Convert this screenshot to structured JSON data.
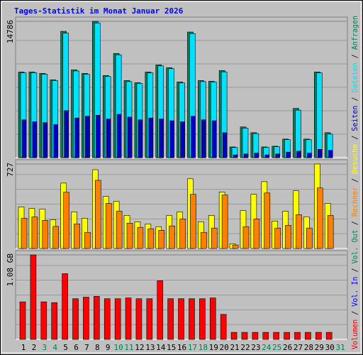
{
  "chart_data": {
    "type": "bar",
    "title": "Tages-Statistik im Monat Januar 2026",
    "categories": [
      1,
      2,
      3,
      4,
      5,
      6,
      7,
      8,
      9,
      10,
      11,
      12,
      13,
      14,
      15,
      16,
      17,
      18,
      19,
      20,
      21,
      22,
      23,
      24,
      25,
      26,
      27,
      28,
      29,
      30,
      31
    ],
    "category_colors": [
      "#000000",
      "#000000",
      "#00805c",
      "#00805c",
      "#000000",
      "#000000",
      "#000000",
      "#000000",
      "#000000",
      "#00805c",
      "#00805c",
      "#000000",
      "#000000",
      "#000000",
      "#000000",
      "#000000",
      "#00805c",
      "#00805c",
      "#000000",
      "#000000",
      "#000000",
      "#000000",
      "#000000",
      "#00805c",
      "#00805c",
      "#000000",
      "#000000",
      "#000000",
      "#000000",
      "#000000",
      "#00805c"
    ],
    "panels": [
      {
        "ylim": [
          0,
          14786
        ],
        "yticks": [
          14786
        ],
        "series": [
          {
            "name": "Anfragen",
            "color": "#00805c",
            "values": [
              9290,
              9290,
              9135,
              8438,
              13702,
              9522,
              9135,
              14786,
              8903,
              11302,
              8361,
              8129,
              9290,
              10064,
              9754,
              8206,
              13625,
              8361,
              8283,
              9445,
              1161,
              3329,
              2710,
              1161,
              1239,
              2013,
              5342,
              2013,
              9290,
              2710,
              0
            ]
          },
          {
            "name": "Dateien",
            "color": "#00e0ff",
            "values": [
              9200,
              9210,
              9050,
              8350,
              13500,
              9400,
              9050,
              14600,
              8800,
              11150,
              8250,
              8050,
              9200,
              9950,
              9650,
              8100,
              13450,
              8250,
              8200,
              9300,
              1100,
              3200,
              2600,
              1100,
              1180,
              1950,
              5150,
              1950,
              9200,
              2550,
              0
            ]
          },
          {
            "name": "Seiten",
            "color": "#0000c0",
            "values": [
              4100,
              3900,
              3800,
              3600,
              5100,
              4300,
              4500,
              4600,
              4200,
              4700,
              4400,
              4100,
              4300,
              4200,
              4000,
              3900,
              4500,
              4100,
              4000,
              2700,
              300,
              400,
              500,
              300,
              400,
              600,
              700,
              500,
              900,
              800,
              0
            ]
          }
        ]
      },
      {
        "ylim": [
          0,
          727
        ],
        "yticks": [
          727
        ],
        "series": [
          {
            "name": "Besuche",
            "color": "#ffff00",
            "values": [
              357,
              345,
              339,
              248,
              563,
              315,
              260,
              678,
              448,
              406,
              285,
              230,
              212,
              188,
              285,
              315,
              600,
              230,
              285,
              485,
              40,
              327,
              466,
              575,
              236,
              321,
              497,
              273,
              727,
              388,
              0
            ]
          },
          {
            "name": "Rechner",
            "color": "#ff8000",
            "values": [
              260,
              272,
              242,
              190,
              484,
              212,
              139,
              587,
              388,
              321,
              218,
              182,
              170,
              157,
              194,
              254,
              466,
              139,
              176,
              460,
              30,
              188,
              254,
              478,
              176,
              200,
              291,
              176,
              521,
              285,
              0
            ]
          }
        ]
      },
      {
        "ylim": [
          0,
          1.08
        ],
        "yticks": [
          {
            "value": 1.08,
            "label": "1.08 GB"
          }
        ],
        "series": [
          {
            "name": "Volumen",
            "color": "#ff0000",
            "values": [
              0.48,
              1.08,
              0.48,
              0.47,
              0.84,
              0.52,
              0.54,
              0.55,
              0.52,
              0.52,
              0.53,
              0.52,
              0.52,
              0.75,
              0.52,
              0.52,
              0.52,
              0.52,
              0.53,
              0.32,
              0.09,
              0.09,
              0.09,
              0.09,
              0.09,
              0.09,
              0.09,
              0.09,
              0.09,
              0.09,
              0
            ]
          }
        ],
        "legend_labels": [
          {
            "text": "Vol. In",
            "color": "#0000ff"
          },
          {
            "text": "Vol. Out",
            "color": "#00805c"
          }
        ]
      }
    ],
    "legend_separator": " / "
  }
}
